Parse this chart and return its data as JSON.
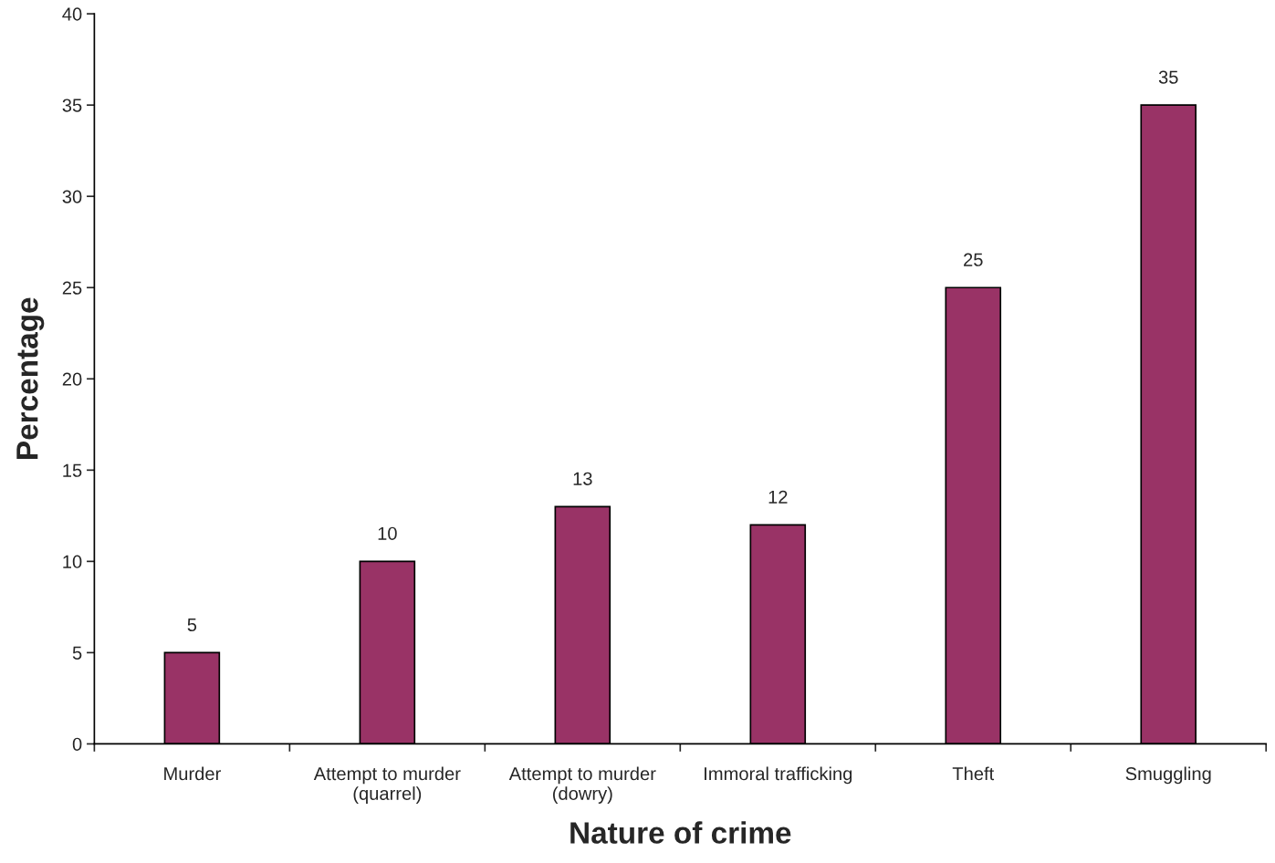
{
  "chart_data": {
    "type": "bar",
    "xlabel": "Nature of crime",
    "ylabel": "Percentage",
    "categories": [
      "Murder",
      "Attempt to murder\n(quarrel)",
      "Attempt to murder\n(dowry)",
      "Immoral trafficking",
      "Theft",
      "Smuggling"
    ],
    "values": [
      5,
      10,
      13,
      12,
      25,
      35
    ],
    "color": "#993366",
    "ylim": [
      0,
      40
    ],
    "yticks": [
      0,
      5,
      10,
      15,
      20,
      25,
      30,
      35,
      40
    ],
    "data_labels": true,
    "grid": false,
    "legend": false
  }
}
